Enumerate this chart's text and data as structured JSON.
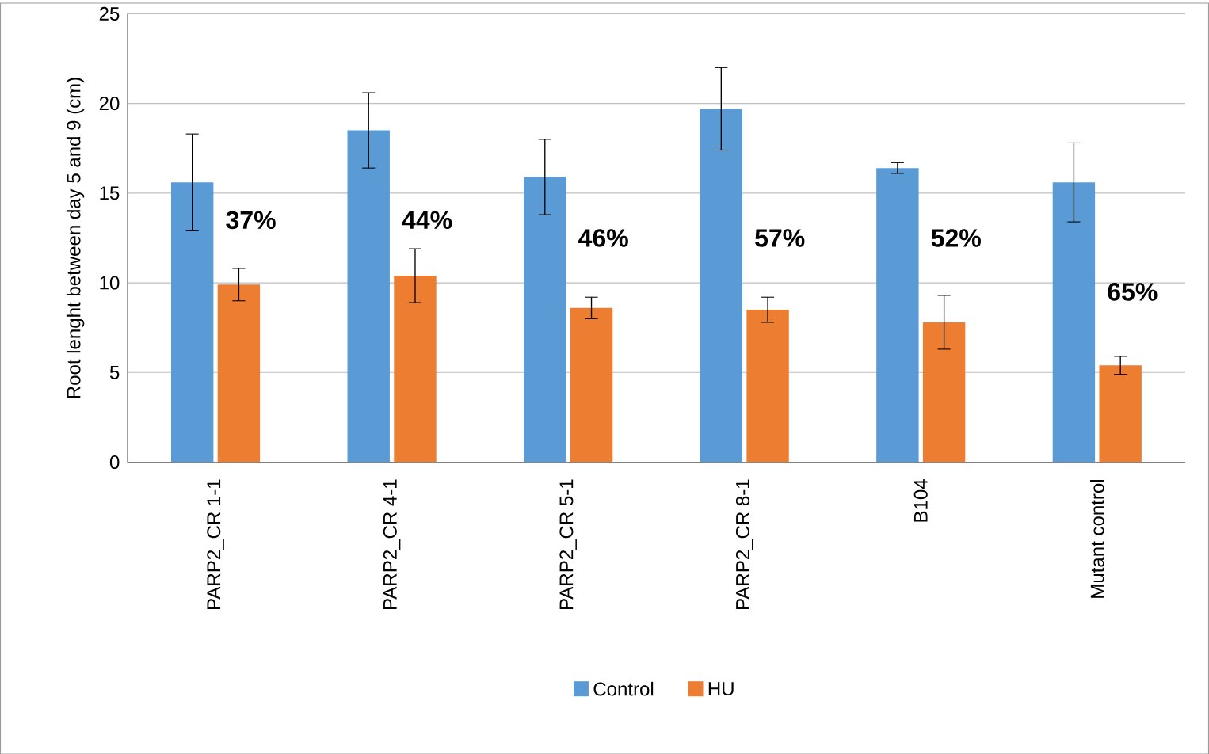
{
  "chart_data": {
    "type": "bar",
    "ylabel": "Root lenght between day 5 and 9 (cm)",
    "categories": [
      "PARP2_CR 1-1",
      "PARP2_CR 4-1",
      "PARP2_CR 5-1",
      "PARP2_CR 8-1",
      "B104",
      "Mutant control"
    ],
    "series": [
      {
        "name": "Control",
        "color": "#5b9bd5",
        "values": [
          15.6,
          18.5,
          15.9,
          19.7,
          16.4,
          15.6
        ],
        "errors": [
          2.7,
          2.1,
          2.1,
          2.3,
          0.3,
          2.2
        ]
      },
      {
        "name": "HU",
        "color": "#ed7d31",
        "values": [
          9.9,
          10.4,
          8.6,
          8.5,
          7.8,
          5.4
        ],
        "errors": [
          0.9,
          1.5,
          0.6,
          0.7,
          1.5,
          0.5
        ]
      }
    ],
    "annotations": [
      {
        "text": "37%",
        "x": "PARP2_CR 1-1",
        "y": 13.5
      },
      {
        "text": "44%",
        "x": "PARP2_CR 4-1",
        "y": 13.5
      },
      {
        "text": "46%",
        "x": "PARP2_CR 5-1",
        "y": 12.5
      },
      {
        "text": "57%",
        "x": "PARP2_CR 8-1",
        "y": 12.5
      },
      {
        "text": "52%",
        "x": "B104",
        "y": 12.5
      },
      {
        "text": "65%",
        "x": "Mutant control",
        "y": 9.5
      }
    ],
    "ylim": [
      0,
      25
    ],
    "yticks": [
      0,
      5,
      10,
      15,
      20,
      25
    ],
    "grid": "y",
    "legend": "bottom"
  }
}
